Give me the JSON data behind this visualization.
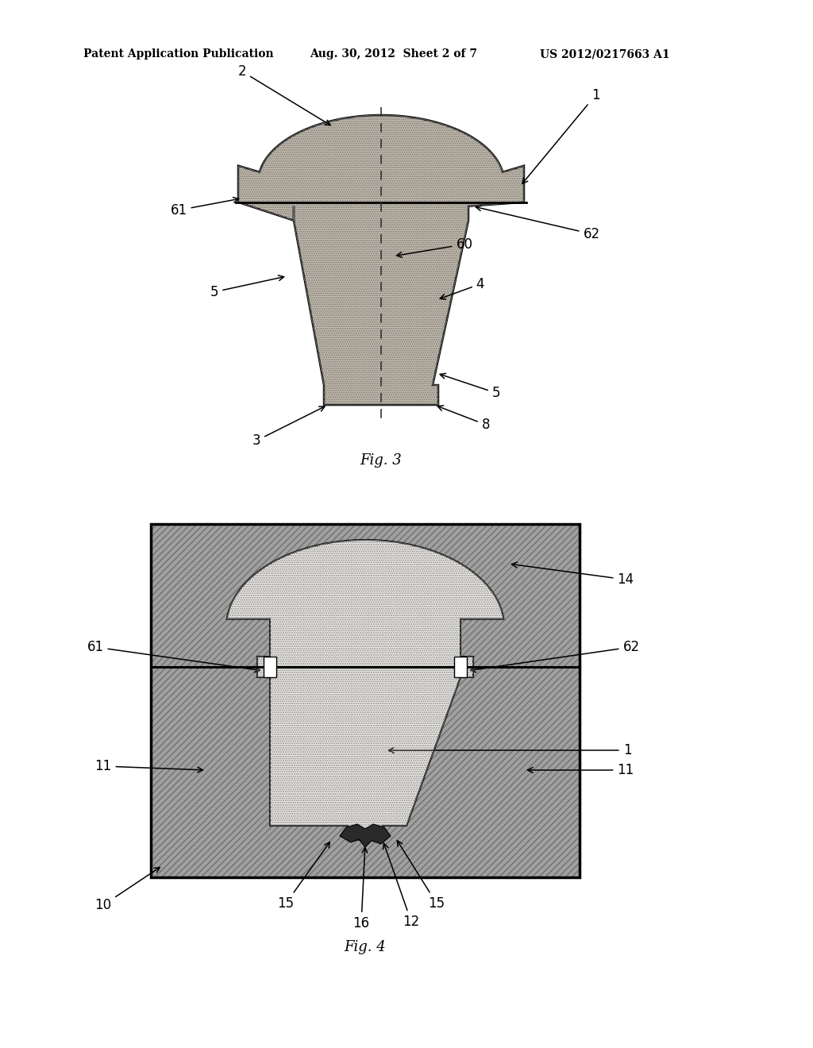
{
  "bg_color": "#ffffff",
  "header_left": "Patent Application Publication",
  "header_mid": "Aug. 30, 2012  Sheet 2 of 7",
  "header_right": "US 2012/0217663 A1",
  "fig3_caption": "Fig. 3",
  "fig4_caption": "Fig. 4",
  "stipple_color": "#c8bfaf",
  "outline_color": "#000000",
  "mold_gray": "#a0a0a0",
  "mold_hatch_color": "#707070",
  "lens_white": "#f0ede8",
  "notch_white": "#ffffff",
  "tip_dark": "#2a2a2a"
}
